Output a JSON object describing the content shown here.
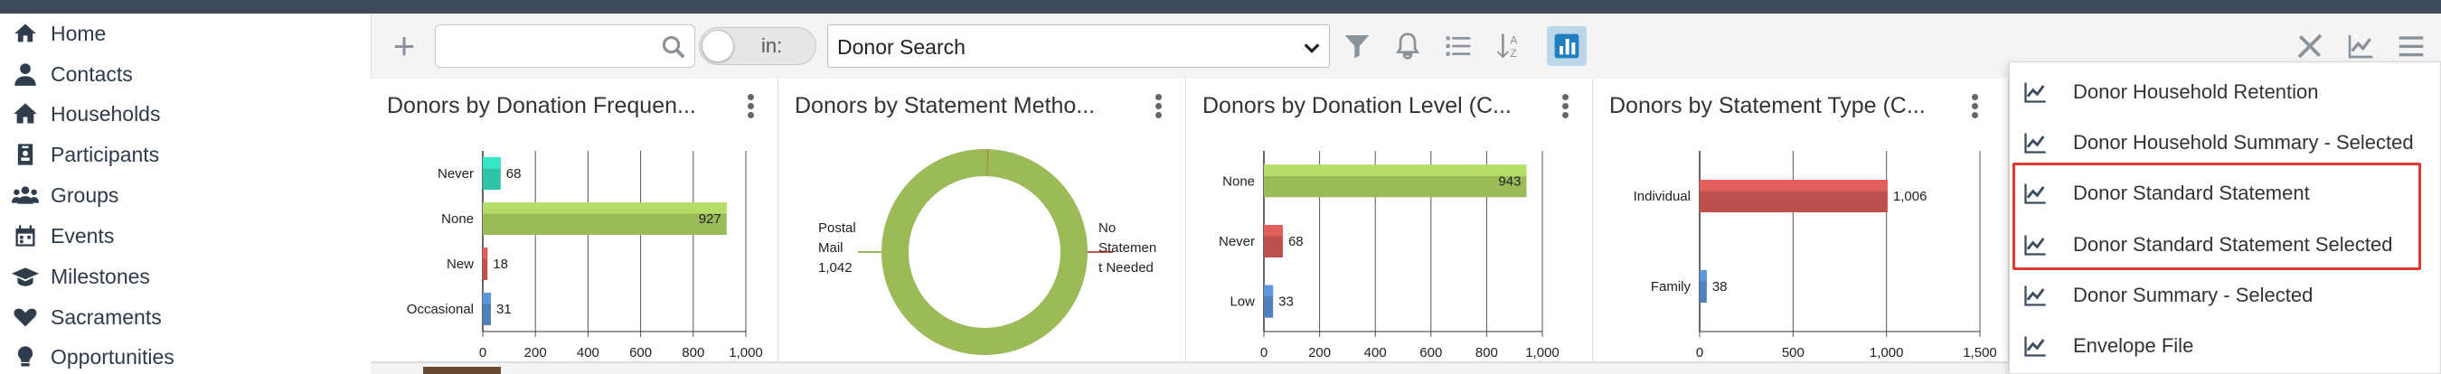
{
  "sidebar": {
    "items": [
      {
        "label": "Home",
        "icon": "home-icon"
      },
      {
        "label": "Contacts",
        "icon": "person-icon"
      },
      {
        "label": "Households",
        "icon": "household-icon"
      },
      {
        "label": "Participants",
        "icon": "id-badge-icon"
      },
      {
        "label": "Groups",
        "icon": "users-icon"
      },
      {
        "label": "Events",
        "icon": "calendar-icon"
      },
      {
        "label": "Milestones",
        "icon": "graduation-cap-icon"
      },
      {
        "label": "Sacraments",
        "icon": "heart-icon"
      },
      {
        "label": "Opportunities",
        "icon": "lightbulb-icon"
      }
    ]
  },
  "toolbar": {
    "search": {
      "value": "",
      "placeholder": ""
    },
    "in_toggle_label": "in:",
    "view_select": {
      "value": "Donor Search"
    },
    "icons": [
      "plus-icon",
      "search-icon",
      "filter-icon",
      "bell-icon",
      "list-icon",
      "sort-az-icon",
      "bar-chart-icon",
      "tools-icon",
      "trend-chart-icon",
      "hamburger-menu-icon"
    ]
  },
  "panels": [
    {
      "title": "Donors by Donation Frequen..."
    },
    {
      "title": "Donors by Statement Metho..."
    },
    {
      "title": "Donors by Donation Level (C..."
    },
    {
      "title": "Donors by Statement Type (C..."
    }
  ],
  "chart_data": [
    {
      "type": "bar",
      "orientation": "horizontal",
      "title": "Donors by Donation Frequen...",
      "categories": [
        "Never",
        "None",
        "New",
        "Occasional"
      ],
      "values": [
        68,
        927,
        18,
        31
      ],
      "colors": [
        "#2ec4a8",
        "#9bbb59",
        "#c0504d",
        "#4f81bd"
      ],
      "data_labels": [
        "68",
        "927",
        "18",
        "31"
      ],
      "xlim": [
        0,
        1000
      ],
      "xticks": [
        "0",
        "200",
        "400",
        "600",
        "800",
        "1,000"
      ],
      "grid": true
    },
    {
      "type": "pie",
      "style": "donut",
      "title": "Donors by Statement Metho...",
      "slices": [
        {
          "label": "Postal Mail 1,042",
          "value": 1042,
          "color": "#9bbb59"
        },
        {
          "label": "No Statement Needed",
          "value": 1,
          "color": "#c0504d"
        }
      ],
      "label_lines": {
        "left": [
          "Postal",
          "Mail",
          "1,042"
        ],
        "right": [
          "No",
          "Statemen",
          "t Needed"
        ]
      }
    },
    {
      "type": "bar",
      "orientation": "horizontal",
      "title": "Donors by Donation Level (C...",
      "categories": [
        "None",
        "Never",
        "Low"
      ],
      "values": [
        943,
        68,
        33
      ],
      "colors": [
        "#9bbb59",
        "#c0504d",
        "#4f81bd"
      ],
      "data_labels": [
        "943",
        "68",
        "33"
      ],
      "xlim": [
        0,
        1000
      ],
      "xticks": [
        "0",
        "200",
        "400",
        "600",
        "800",
        "1,000"
      ],
      "grid": true
    },
    {
      "type": "bar",
      "orientation": "horizontal",
      "title": "Donors by Statement Type (C...",
      "categories": [
        "Individual",
        "Family"
      ],
      "values": [
        1006,
        38
      ],
      "colors": [
        "#c0504d",
        "#4f81bd"
      ],
      "data_labels": [
        "1,006",
        "38"
      ],
      "xlim": [
        0,
        1500
      ],
      "xticks": [
        "0",
        "500",
        "1,000",
        "1,500"
      ],
      "grid": true
    }
  ],
  "report_menu": {
    "items": [
      {
        "label": "Donor Household Retention",
        "icon": "trend-chart-icon"
      },
      {
        "label": "Donor Household Summary - Selected",
        "icon": "trend-chart-icon"
      },
      {
        "label": "Donor Standard Statement",
        "icon": "trend-chart-icon"
      },
      {
        "label": "Donor Standard Statement Selected",
        "icon": "trend-chart-icon"
      },
      {
        "label": "Donor Summary - Selected",
        "icon": "trend-chart-icon"
      },
      {
        "label": "Envelope File",
        "icon": "trend-chart-icon"
      }
    ],
    "highlight_color": "#e03a2f"
  }
}
